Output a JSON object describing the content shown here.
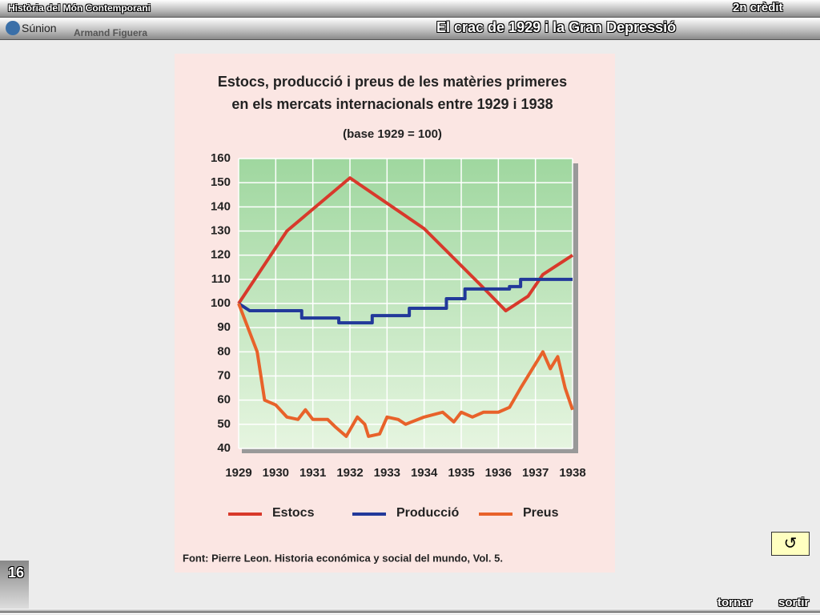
{
  "header": {
    "course": "Història del Món Contemporani",
    "credit": "2n crèdit",
    "logo": "Súnion",
    "author": "Armand Figuera",
    "title": "El crac de 1929 i la Gran Depressió"
  },
  "footer": {
    "page": "16",
    "back": "tornar",
    "exit": "sortir"
  },
  "chart_data": {
    "type": "line",
    "title": [
      "Estocs, producció i preus de les matèries primeres",
      "en els mercats internacionals entre 1929 i 1938"
    ],
    "subtitle": "(base 1929 = 100)",
    "xlim": [
      1929,
      1938
    ],
    "xticks": [
      1929,
      1930,
      1931,
      1932,
      1933,
      1934,
      1935,
      1936,
      1937,
      1938
    ],
    "ylim": [
      40,
      160
    ],
    "yticks": [
      40,
      50,
      60,
      70,
      80,
      90,
      100,
      110,
      120,
      130,
      140,
      150,
      160
    ],
    "grid": true,
    "series": [
      {
        "name": "Estocs",
        "color": "#d8392b",
        "x": [
          1929,
          1930.3,
          1932,
          1934,
          1935.5,
          1936.2,
          1936.8,
          1937.2,
          1938
        ],
        "values": [
          100,
          130,
          152,
          131,
          108,
          97,
          103,
          112,
          120
        ]
      },
      {
        "name": "Producció",
        "color": "#22399a",
        "x": [
          1929,
          1929.3,
          1930.7,
          1930.7,
          1931.7,
          1931.7,
          1932.6,
          1932.6,
          1933.6,
          1933.6,
          1934.6,
          1934.6,
          1935.1,
          1935.1,
          1936.3,
          1936.3,
          1936.6,
          1936.6,
          1938
        ],
        "values": [
          100,
          97,
          97,
          94,
          94,
          92,
          92,
          95,
          95,
          98,
          98,
          102,
          102,
          106,
          106,
          107,
          107,
          110,
          110
        ]
      },
      {
        "name": "Preus",
        "color": "#e8622a",
        "x": [
          1929,
          1929.5,
          1929.7,
          1930,
          1930.3,
          1930.6,
          1930.8,
          1931,
          1931.4,
          1931.6,
          1931.9,
          1932.2,
          1932.4,
          1932.5,
          1932.8,
          1933,
          1933.3,
          1933.5,
          1934,
          1934.5,
          1934.8,
          1935,
          1935.3,
          1935.6,
          1936,
          1936.3,
          1936.6,
          1937,
          1937.2,
          1937.4,
          1937.6,
          1937.8,
          1938
        ],
        "values": [
          100,
          80,
          60,
          58,
          53,
          52,
          56,
          52,
          52,
          49,
          45,
          53,
          50,
          45,
          46,
          53,
          52,
          50,
          53,
          55,
          51,
          55,
          53,
          55,
          55,
          57,
          65,
          75,
          80,
          73,
          78,
          65,
          56
        ]
      }
    ],
    "source": "Font: Pierre Leon. Historia económica y social del mundo, Vol. 5."
  }
}
